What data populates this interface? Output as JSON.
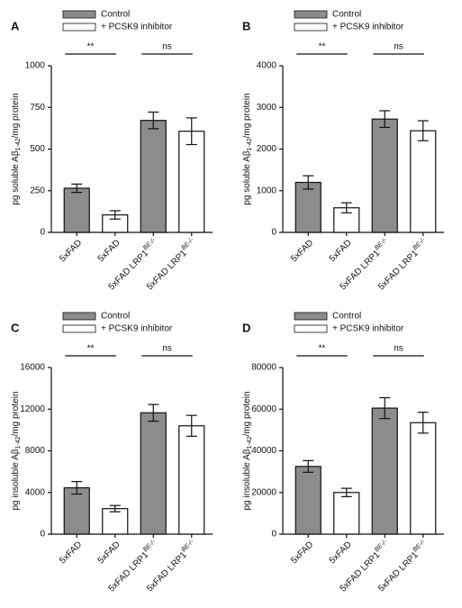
{
  "chart_data": [
    {
      "type": "bar",
      "label": "A",
      "y_label": "pg soluble Aβ1-42/mg protein",
      "categories": [
        "5xFAD",
        "5xFAD",
        "5xFAD LRP1BE-/-",
        "5xFAD LRP1BE-/-"
      ],
      "series": [
        {
          "name": "Control",
          "color": "#8c8c8c",
          "values": [
            265,
            null,
            672,
            null
          ],
          "errors": [
            25,
            null,
            50,
            null
          ]
        },
        {
          "name": "+ PCSK9 inhibitor",
          "color": "#ffffff",
          "values": [
            null,
            105,
            null,
            607
          ],
          "errors": [
            null,
            25,
            null,
            80
          ]
        }
      ],
      "annotations": [
        "**",
        "ns"
      ],
      "ylim": [
        0,
        1000
      ],
      "yticks": [
        0,
        250,
        500,
        750,
        1000
      ]
    },
    {
      "type": "bar",
      "label": "B",
      "y_label": "pg soluble Aβ1-42/mg protein",
      "categories": [
        "5xFAD",
        "5xFAD",
        "5xFAD LRP1BE-/-",
        "5xFAD LRP1BE-/-"
      ],
      "series": [
        {
          "name": "Control",
          "color": "#8c8c8c",
          "values": [
            1200,
            null,
            2720,
            null
          ],
          "errors": [
            160,
            null,
            200,
            null
          ]
        },
        {
          "name": "+ PCSK9 inhibitor",
          "color": "#ffffff",
          "values": [
            null,
            590,
            null,
            2440
          ],
          "errors": [
            null,
            120,
            null,
            240
          ]
        }
      ],
      "annotations": [
        "**",
        "ns"
      ],
      "ylim": [
        0,
        4000
      ],
      "yticks": [
        0,
        1000,
        2000,
        3000,
        4000
      ]
    },
    {
      "type": "bar",
      "label": "C",
      "y_label": "pg insoluble Aβ1-42/mg protein",
      "categories": [
        "5xFAD",
        "5xFAD",
        "5xFAD LRP1BE-/-",
        "5xFAD LRP1BE-/-"
      ],
      "series": [
        {
          "name": "Control",
          "color": "#8c8c8c",
          "values": [
            4450,
            null,
            11650,
            null
          ],
          "errors": [
            600,
            null,
            800,
            null
          ]
        },
        {
          "name": "+ PCSK9 inhibitor",
          "color": "#ffffff",
          "values": [
            null,
            2450,
            null,
            10400
          ],
          "errors": [
            null,
            300,
            null,
            1000
          ]
        }
      ],
      "annotations": [
        "**",
        "ns"
      ],
      "ylim": [
        0,
        16000
      ],
      "yticks": [
        0,
        4000,
        8000,
        12000,
        16000
      ]
    },
    {
      "type": "bar",
      "label": "D",
      "y_label": "pg insoluble Aβ1-42/mg protein",
      "categories": [
        "5xFAD",
        "5xFAD",
        "5xFAD LRP1BE-/-",
        "5xFAD LRP1BE-/-"
      ],
      "series": [
        {
          "name": "Control",
          "color": "#8c8c8c",
          "values": [
            32500,
            null,
            60500,
            null
          ],
          "errors": [
            2800,
            null,
            5000,
            null
          ]
        },
        {
          "name": "+ PCSK9 inhibitor",
          "color": "#ffffff",
          "values": [
            null,
            20000,
            null,
            53500
          ],
          "errors": [
            null,
            2000,
            null,
            5000
          ]
        }
      ],
      "annotations": [
        "**",
        "ns"
      ],
      "ylim": [
        0,
        80000
      ],
      "yticks": [
        0,
        20000,
        40000,
        60000,
        80000
      ]
    }
  ]
}
